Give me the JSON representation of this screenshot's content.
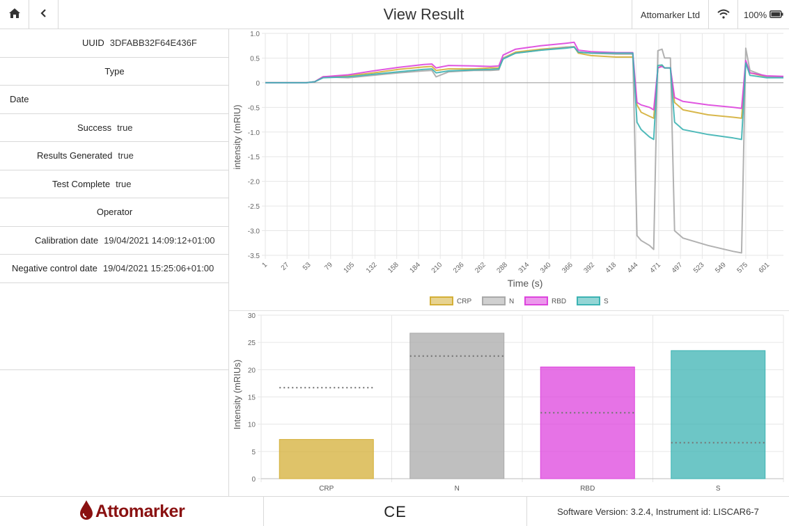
{
  "header": {
    "title": "View Result",
    "company": "Attomarker Ltd",
    "battery": "100%"
  },
  "details": {
    "uuid_label": "UUID",
    "uuid_value": "3DFABB32F64E436F",
    "type_label": "Type",
    "date_label": "Date",
    "success_label": "Success",
    "success_value": "true",
    "results_generated_label": "Results Generated",
    "results_generated_value": "true",
    "test_complete_label": "Test Complete",
    "test_complete_value": "true",
    "operator_label": "Operator",
    "calibration_label": "Calibration date",
    "calibration_value": "19/04/2021 14:09:12+01:00",
    "negative_control_label": "Negative control date",
    "negative_control_value": "19/04/2021 15:25:06+01:00"
  },
  "footer": {
    "logo": "Attomarker",
    "ce_mark": "CE",
    "version": "Software Version: 3.2.4,  Instrument id: LISCAR6-7"
  },
  "colors": {
    "CRP": "#d4af37",
    "N": "#a9a9a9",
    "RBD": "#dd44dd",
    "S": "#3cb3b3"
  },
  "chart_data": [
    {
      "type": "line",
      "xlabel": "Time (s)",
      "ylabel": "intensity (mRIU)",
      "ylim": [
        -3.5,
        1.0
      ],
      "xlim": [
        1,
        620
      ],
      "xticks": [
        "1",
        "27",
        "53",
        "79",
        "105",
        "132",
        "158",
        "184",
        "210",
        "236",
        "262",
        "288",
        "314",
        "340",
        "366",
        "392",
        "418",
        "444",
        "471",
        "497",
        "523",
        "549",
        "575",
        "601"
      ],
      "yticks": [
        "1.0",
        "0.5",
        "0",
        "-0.5",
        "-1.0",
        "-1.5",
        "-2.0",
        "-2.5",
        "-3.0",
        "-3.5"
      ],
      "legend_placement": "bottom",
      "grid": true,
      "series": [
        {
          "name": "CRP",
          "points": [
            [
              1,
              0
            ],
            [
              50,
              0
            ],
            [
              60,
              0.02
            ],
            [
              70,
              0.12
            ],
            [
              100,
              0.14
            ],
            [
              130,
              0.2
            ],
            [
              160,
              0.27
            ],
            [
              190,
              0.32
            ],
            [
              200,
              0.33
            ],
            [
              205,
              0.25
            ],
            [
              220,
              0.28
            ],
            [
              250,
              0.28
            ],
            [
              270,
              0.3
            ],
            [
              280,
              0.3
            ],
            [
              285,
              0.5
            ],
            [
              300,
              0.62
            ],
            [
              330,
              0.68
            ],
            [
              360,
              0.72
            ],
            [
              370,
              0.73
            ],
            [
              375,
              0.6
            ],
            [
              390,
              0.55
            ],
            [
              420,
              0.52
            ],
            [
              440,
              0.52
            ],
            [
              445,
              -0.45
            ],
            [
              450,
              -0.6
            ],
            [
              460,
              -0.68
            ],
            [
              465,
              -0.72
            ],
            [
              470,
              0.3
            ],
            [
              475,
              0.35
            ],
            [
              478,
              0.3
            ],
            [
              485,
              0.3
            ],
            [
              490,
              -0.4
            ],
            [
              500,
              -0.55
            ],
            [
              530,
              -0.65
            ],
            [
              560,
              -0.7
            ],
            [
              570,
              -0.72
            ],
            [
              575,
              0.42
            ],
            [
              580,
              0.2
            ],
            [
              600,
              0.12
            ],
            [
              620,
              0.12
            ]
          ]
        },
        {
          "name": "N",
          "points": [
            [
              1,
              0
            ],
            [
              50,
              0
            ],
            [
              60,
              0.02
            ],
            [
              70,
              0.12
            ],
            [
              100,
              0.1
            ],
            [
              130,
              0.15
            ],
            [
              160,
              0.2
            ],
            [
              190,
              0.24
            ],
            [
              200,
              0.25
            ],
            [
              205,
              0.12
            ],
            [
              220,
              0.22
            ],
            [
              250,
              0.25
            ],
            [
              270,
              0.25
            ],
            [
              280,
              0.26
            ],
            [
              285,
              0.5
            ],
            [
              300,
              0.6
            ],
            [
              330,
              0.66
            ],
            [
              360,
              0.72
            ],
            [
              370,
              0.73
            ],
            [
              375,
              0.62
            ],
            [
              390,
              0.6
            ],
            [
              420,
              0.58
            ],
            [
              440,
              0.58
            ],
            [
              445,
              -3.1
            ],
            [
              450,
              -3.2
            ],
            [
              460,
              -3.3
            ],
            [
              465,
              -3.38
            ],
            [
              470,
              0.65
            ],
            [
              475,
              0.68
            ],
            [
              478,
              0.5
            ],
            [
              485,
              0.5
            ],
            [
              490,
              -3.0
            ],
            [
              500,
              -3.15
            ],
            [
              530,
              -3.3
            ],
            [
              560,
              -3.42
            ],
            [
              570,
              -3.45
            ],
            [
              575,
              0.7
            ],
            [
              580,
              0.25
            ],
            [
              600,
              0.12
            ],
            [
              620,
              0.12
            ]
          ]
        },
        {
          "name": "RBD",
          "points": [
            [
              1,
              0
            ],
            [
              50,
              0
            ],
            [
              60,
              0.02
            ],
            [
              70,
              0.12
            ],
            [
              100,
              0.16
            ],
            [
              130,
              0.24
            ],
            [
              160,
              0.31
            ],
            [
              190,
              0.37
            ],
            [
              200,
              0.38
            ],
            [
              205,
              0.3
            ],
            [
              220,
              0.35
            ],
            [
              250,
              0.34
            ],
            [
              270,
              0.33
            ],
            [
              280,
              0.34
            ],
            [
              285,
              0.56
            ],
            [
              300,
              0.68
            ],
            [
              330,
              0.75
            ],
            [
              360,
              0.8
            ],
            [
              370,
              0.82
            ],
            [
              375,
              0.66
            ],
            [
              390,
              0.63
            ],
            [
              420,
              0.61
            ],
            [
              440,
              0.61
            ],
            [
              445,
              -0.4
            ],
            [
              450,
              -0.45
            ],
            [
              460,
              -0.5
            ],
            [
              465,
              -0.55
            ],
            [
              470,
              0.3
            ],
            [
              475,
              0.33
            ],
            [
              478,
              0.3
            ],
            [
              485,
              0.3
            ],
            [
              490,
              -0.3
            ],
            [
              500,
              -0.38
            ],
            [
              530,
              -0.45
            ],
            [
              560,
              -0.5
            ],
            [
              570,
              -0.52
            ],
            [
              575,
              0.45
            ],
            [
              580,
              0.2
            ],
            [
              600,
              0.14
            ],
            [
              620,
              0.13
            ]
          ]
        },
        {
          "name": "S",
          "points": [
            [
              1,
              0
            ],
            [
              50,
              0
            ],
            [
              60,
              0.02
            ],
            [
              70,
              0.1
            ],
            [
              100,
              0.12
            ],
            [
              130,
              0.17
            ],
            [
              160,
              0.22
            ],
            [
              190,
              0.27
            ],
            [
              200,
              0.28
            ],
            [
              205,
              0.2
            ],
            [
              220,
              0.24
            ],
            [
              250,
              0.26
            ],
            [
              270,
              0.27
            ],
            [
              280,
              0.28
            ],
            [
              285,
              0.48
            ],
            [
              300,
              0.6
            ],
            [
              330,
              0.66
            ],
            [
              360,
              0.7
            ],
            [
              370,
              0.72
            ],
            [
              375,
              0.62
            ],
            [
              390,
              0.6
            ],
            [
              420,
              0.6
            ],
            [
              440,
              0.6
            ],
            [
              445,
              -0.8
            ],
            [
              450,
              -0.95
            ],
            [
              460,
              -1.1
            ],
            [
              465,
              -1.15
            ],
            [
              470,
              0.35
            ],
            [
              475,
              0.36
            ],
            [
              478,
              0.3
            ],
            [
              485,
              0.3
            ],
            [
              490,
              -0.8
            ],
            [
              500,
              -0.95
            ],
            [
              530,
              -1.05
            ],
            [
              560,
              -1.12
            ],
            [
              570,
              -1.15
            ],
            [
              575,
              0.4
            ],
            [
              580,
              0.15
            ],
            [
              600,
              0.1
            ],
            [
              620,
              0.1
            ]
          ]
        }
      ]
    },
    {
      "type": "bar",
      "ylabel": "Intensity (mRIUs)",
      "ylim": [
        0,
        30
      ],
      "yticks": [
        "0",
        "5",
        "10",
        "15",
        "20",
        "25",
        "30"
      ],
      "categories": [
        "CRP",
        "N",
        "RBD",
        "S"
      ],
      "values": [
        7.2,
        26.7,
        20.5,
        23.5
      ],
      "thresholds": [
        16.7,
        22.5,
        12.1,
        6.6
      ],
      "grid": true
    }
  ]
}
